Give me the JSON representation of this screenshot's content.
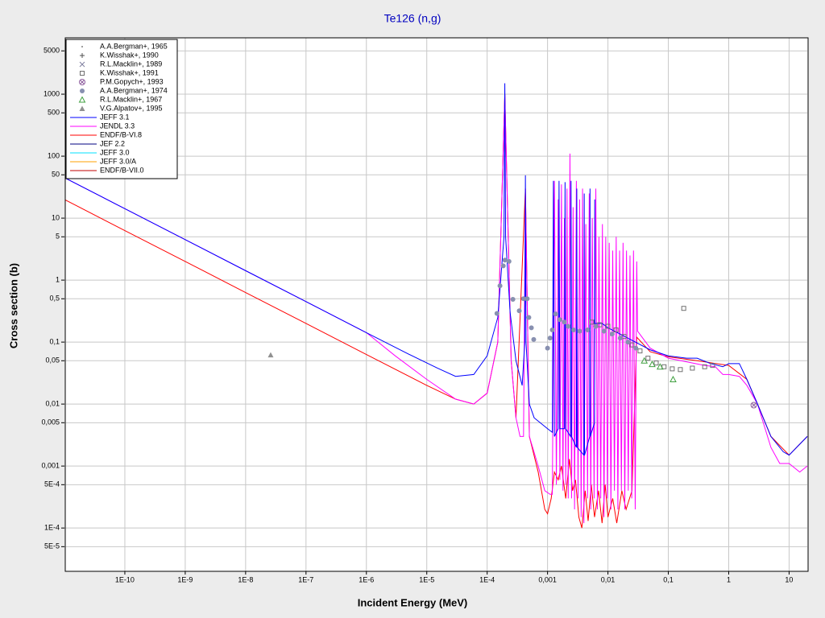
{
  "chart_data": {
    "type": "line",
    "title": "Te126 (n,g)",
    "xlabel": "Incident Energy (MeV)",
    "ylabel": "Cross section (b)",
    "xscale": "log",
    "yscale": "log",
    "grid": true,
    "legend": "upper left",
    "xlim": [
      1e-11,
      20
    ],
    "ylim": [
      2e-05,
      8000
    ],
    "xticks": [
      {
        "value": 1e-10,
        "label": "1E-10"
      },
      {
        "value": 1e-09,
        "label": "1E-9"
      },
      {
        "value": 1e-08,
        "label": "1E-8"
      },
      {
        "value": 1e-07,
        "label": "1E-7"
      },
      {
        "value": 1e-06,
        "label": "1E-6"
      },
      {
        "value": 1e-05,
        "label": "1E-5"
      },
      {
        "value": 0.0001,
        "label": "1E-4"
      },
      {
        "value": 0.001,
        "label": "0,001"
      },
      {
        "value": 0.01,
        "label": "0,01"
      },
      {
        "value": 0.1,
        "label": "0,1"
      },
      1,
      10
    ],
    "yticks": [
      5000,
      1000,
      500,
      100,
      50,
      10,
      5,
      1,
      {
        "value": 0.5,
        "label": "0,5"
      },
      {
        "value": 0.1,
        "label": "0,1"
      },
      {
        "value": 0.05,
        "label": "0,05"
      },
      {
        "value": 0.01,
        "label": "0,01"
      },
      {
        "value": 0.005,
        "label": "0,005"
      },
      {
        "value": 0.001,
        "label": "0,001"
      },
      {
        "value": 0.0005,
        "label": "5E-4"
      },
      {
        "value": 0.0001,
        "label": "1E-4"
      },
      {
        "value": 5e-05,
        "label": "5E-5"
      }
    ],
    "series": [
      {
        "name": "A.A.Bergman+, 1965",
        "color": "#808080",
        "marker": "dot",
        "x": [],
        "values": []
      },
      {
        "name": "K.Wisshak+, 1990",
        "color": "#505050",
        "marker": "plus",
        "x": [],
        "values": []
      },
      {
        "name": "R.L.Macklin+, 1989",
        "color": "#8080a0",
        "marker": "cross",
        "x": [],
        "values": []
      },
      {
        "name": "K.Wisshak+, 1991",
        "color": "#707070",
        "marker": "square",
        "x": [
          0.0054,
          0.0073,
          0.01,
          0.0136,
          0.0185,
          0.025,
          0.034,
          0.046,
          0.063,
          0.085,
          0.116,
          0.158,
          0.18,
          0.25,
          0.4,
          0.54
        ],
        "values": [
          0.21,
          0.19,
          0.18,
          0.157,
          0.123,
          0.09,
          0.072,
          0.055,
          0.046,
          0.04,
          0.037,
          0.036,
          0.35,
          0.038,
          0.04,
          0.042
        ]
      },
      {
        "name": "P.M.Gopych+, 1993",
        "color": "#9060a0",
        "marker": "circle-x",
        "x": [
          2.6
        ],
        "values": [
          0.0096
        ]
      },
      {
        "name": "A.A.Bergman+, 1974",
        "color": "#8890b0",
        "marker": "disc",
        "x": [
          0.000145,
          0.000163,
          0.000185,
          0.000197,
          0.00023,
          0.000267,
          0.00034,
          0.0004,
          0.00046,
          0.00049,
          0.00054,
          0.00059,
          0.001,
          0.0011,
          0.0012,
          0.00136,
          0.0016,
          0.0019,
          0.0022,
          0.0027,
          0.0034,
          0.0046,
          0.0063,
          0.0086,
          0.0117,
          0.016,
          0.0215,
          0.029
        ],
        "values": [
          0.29,
          0.81,
          1.7,
          2.1,
          2.0,
          0.49,
          0.32,
          0.5,
          0.5,
          0.25,
          0.17,
          0.11,
          0.08,
          0.116,
          0.157,
          0.285,
          0.23,
          0.21,
          0.18,
          0.157,
          0.15,
          0.157,
          0.18,
          0.15,
          0.135,
          0.116,
          0.1,
          0.08
        ]
      },
      {
        "name": "R.L.Macklin+, 1967",
        "color": "#40a040",
        "marker": "triangle",
        "x": [
          0.04,
          0.054,
          0.073,
          0.12
        ],
        "values": [
          0.05,
          0.044,
          0.04,
          0.025
        ]
      },
      {
        "name": "V.G.Alpatov+, 1995",
        "color": "#909090",
        "marker": "triangle-filled",
        "x": [
          2.6e-08
        ],
        "values": [
          0.062
        ]
      },
      {
        "name": "JEFF 3.1",
        "color": "#0000ff",
        "x": [
          1e-11,
          1e-10,
          1e-09,
          1e-08,
          1e-07,
          1e-06,
          5e-06,
          1.5e-05,
          3e-05,
          6e-05,
          0.0001,
          0.00015,
          0.00019,
          0.000196,
          0.000202,
          0.00024,
          0.0003,
          0.00038,
          0.00042,
          0.00043,
          0.00044,
          0.0005,
          0.0006,
          0.001,
          0.0012,
          0.00125,
          0.0013,
          0.0015,
          0.00155,
          0.0016,
          0.0019,
          0.00195,
          0.002,
          0.0024,
          0.00245,
          0.0025,
          0.003,
          0.00305,
          0.0031,
          0.004,
          0.00405,
          0.0041,
          0.005,
          0.00505,
          0.0051,
          0.006,
          0.00605,
          0.0061,
          0.008,
          0.01,
          0.02,
          0.05,
          0.1,
          0.2,
          0.3,
          0.5,
          0.8,
          1,
          1.5,
          2,
          3,
          5,
          8,
          10,
          20
        ],
        "values": [
          45,
          14.2,
          4.5,
          1.42,
          0.45,
          0.142,
          0.064,
          0.038,
          0.028,
          0.03,
          0.06,
          0.25,
          5,
          1500,
          5,
          0.3,
          0.05,
          0.02,
          0.1,
          49,
          0.1,
          0.01,
          0.006,
          0.004,
          0.0035,
          40,
          0.003,
          0.004,
          40,
          0.004,
          0.004,
          38,
          0.004,
          0.003,
          40,
          0.003,
          0.002,
          30,
          0.002,
          0.0015,
          25,
          0.0015,
          0.003,
          30,
          0.003,
          0.005,
          20,
          0.2,
          0.2,
          0.17,
          0.12,
          0.075,
          0.06,
          0.055,
          0.055,
          0.045,
          0.04,
          0.045,
          0.045,
          0.025,
          0.01,
          0.003,
          0.0017,
          0.0015,
          0.003
        ]
      },
      {
        "name": "JENDL 3.3",
        "color": "#ff00ff",
        "x": [
          1e-11,
          1e-10,
          1e-09,
          1e-08,
          1e-07,
          1e-06,
          3e-06,
          1e-05,
          3e-05,
          6e-05,
          0.0001,
          0.00015,
          0.000196,
          0.00025,
          0.0003,
          0.00035,
          0.0004,
          0.00043,
          0.0005,
          0.0007,
          0.0009,
          0.0011,
          0.0012,
          0.0013,
          0.0014,
          0.0015,
          0.0016,
          0.0017,
          0.0018,
          0.0019,
          0.002,
          0.0021,
          0.0022,
          0.00235,
          0.0025,
          0.00265,
          0.0028,
          0.003,
          0.0032,
          0.0034,
          0.0036,
          0.0038,
          0.004,
          0.0043,
          0.0046,
          0.0049,
          0.0052,
          0.0055,
          0.0059,
          0.0063,
          0.0067,
          0.0071,
          0.0076,
          0.0081,
          0.0086,
          0.0092,
          0.0098,
          0.0105,
          0.0112,
          0.012,
          0.0128,
          0.0137,
          0.0146,
          0.0156,
          0.0167,
          0.0178,
          0.019,
          0.0203,
          0.0217,
          0.0232,
          0.0248,
          0.0265,
          0.0283,
          0.03,
          0.031,
          0.05,
          0.1,
          0.2,
          0.4,
          0.6,
          0.8,
          1,
          1.5,
          2,
          3,
          5,
          7,
          10,
          15,
          20
        ],
        "values": [
          45,
          14.2,
          4.5,
          1.42,
          0.45,
          0.142,
          0.06,
          0.025,
          0.012,
          0.01,
          0.015,
          0.1,
          1000,
          0.05,
          0.006,
          0.003,
          0.003,
          30,
          0.003,
          0.001,
          0.0004,
          0.00035,
          0.00035,
          40,
          0.0005,
          20,
          0.0006,
          35,
          0.0004,
          10,
          0.0005,
          30,
          0.0003,
          110,
          0.0003,
          15,
          0.0002,
          40,
          0.0003,
          20,
          0.00015,
          30,
          0.00012,
          8,
          0.0003,
          25,
          0.0002,
          10,
          0.0003,
          30,
          0.0002,
          5,
          0.0003,
          8,
          0.00015,
          5,
          0.0003,
          4,
          0.0002,
          3,
          0.0004,
          5,
          0.0002,
          3,
          0.0004,
          4,
          0.0002,
          3,
          0.0004,
          2.5,
          0.0003,
          3,
          0.0002,
          2,
          0.15,
          0.08,
          0.055,
          0.048,
          0.042,
          0.04,
          0.03,
          0.03,
          0.028,
          0.02,
          0.01,
          0.002,
          0.0011,
          0.0011,
          0.0008,
          0.001
        ]
      },
      {
        "name": "ENDF/B-VI.8",
        "color": "#ff0000",
        "x": [
          1e-11,
          1e-10,
          1e-09,
          1e-08,
          1e-07,
          1e-06,
          1e-05,
          3e-05,
          6e-05,
          0.0001,
          0.00015,
          0.000196,
          0.00025,
          0.0003,
          0.00043,
          0.0005,
          0.0007,
          0.0009,
          0.001,
          0.00115,
          0.0013,
          0.0015,
          0.0017,
          0.002,
          0.0023,
          0.0026,
          0.0029,
          0.0033,
          0.0037,
          0.0042,
          0.0047,
          0.0053,
          0.006,
          0.007,
          0.008,
          0.009,
          0.01,
          0.012,
          0.014,
          0.017,
          0.02,
          0.025,
          0.03,
          0.05,
          0.1,
          0.3,
          1,
          2,
          3,
          5,
          10,
          20
        ],
        "values": [
          20,
          6.3,
          2,
          0.63,
          0.2,
          0.063,
          0.02,
          0.012,
          0.01,
          0.015,
          0.1,
          1000,
          0.05,
          0.006,
          30,
          0.003,
          0.0008,
          0.0002,
          0.00017,
          0.0003,
          0.0008,
          0.0006,
          0.001,
          0.0003,
          0.0013,
          0.0004,
          0.0006,
          0.00015,
          0.0001,
          0.0004,
          0.00013,
          0.0005,
          0.00015,
          0.0004,
          0.00012,
          0.0005,
          0.00015,
          0.0003,
          0.00012,
          0.0004,
          0.0002,
          0.0004,
          0.12,
          0.07,
          0.058,
          0.05,
          0.042,
          0.025,
          0.01,
          0.003,
          0.0015,
          0.003
        ]
      },
      {
        "name": "JEF 2.2",
        "color": "#000080",
        "x": [],
        "values": []
      },
      {
        "name": "JEFF 3.0",
        "color": "#00e0ff",
        "x": [],
        "values": []
      },
      {
        "name": "JEFF 3.0/A",
        "color": "#ffa000",
        "x": [],
        "values": []
      },
      {
        "name": "ENDF/B-VII.0",
        "color": "#c00000",
        "x": [],
        "values": []
      }
    ]
  }
}
